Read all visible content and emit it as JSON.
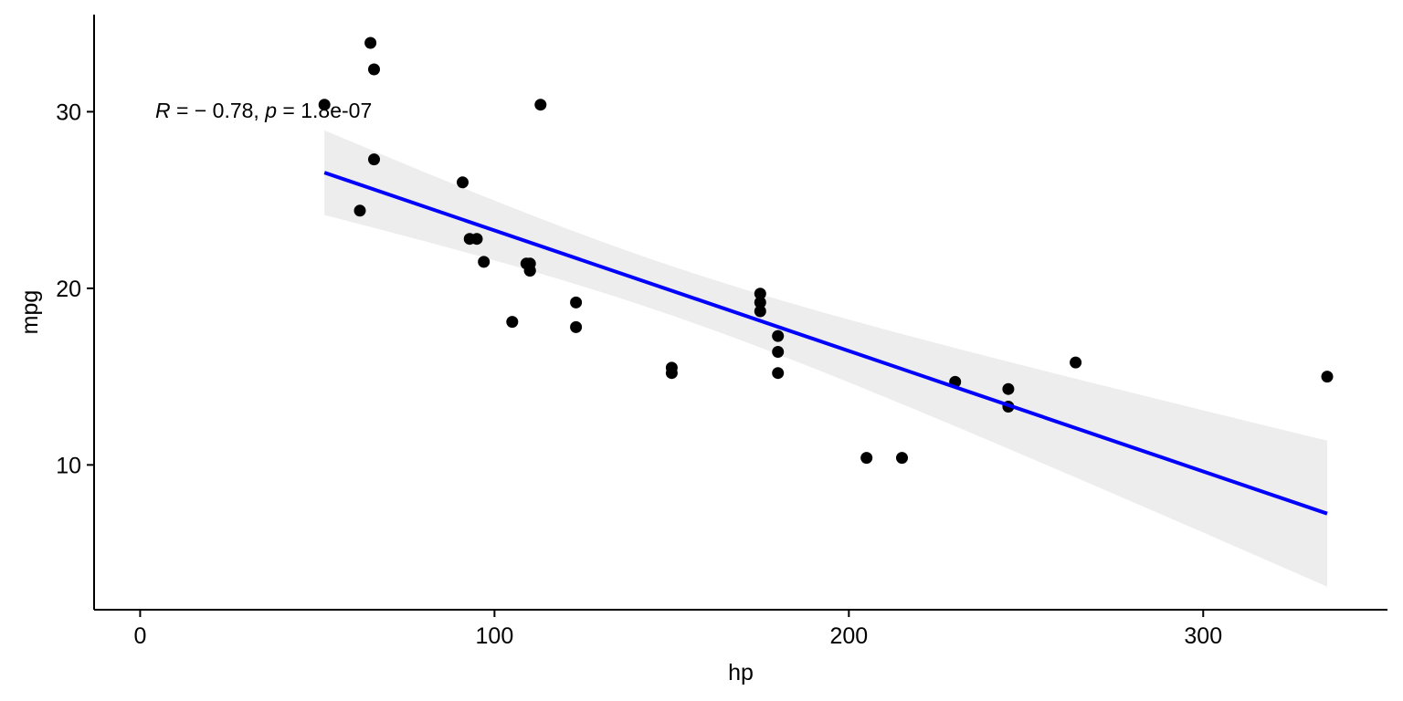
{
  "chart_data": {
    "type": "scatter",
    "title": "",
    "xlabel": "hp",
    "ylabel": "mpg",
    "xlim": [
      -13,
      352
    ],
    "ylim": [
      1.8,
      35.5
    ],
    "x_ticks": [
      0,
      100,
      200,
      300
    ],
    "y_ticks": [
      10,
      20,
      30
    ],
    "grid": false,
    "legend": "none",
    "annotation": {
      "r_symbol": "R",
      "r_text": " = − 0.78, ",
      "p_symbol": "p",
      "p_text": " = 1.8e-07",
      "x": 4,
      "y": 30
    },
    "points": {
      "x": [
        110,
        110,
        93,
        110,
        175,
        105,
        245,
        62,
        95,
        123,
        123,
        180,
        180,
        180,
        205,
        215,
        230,
        66,
        52,
        65,
        97,
        150,
        150,
        245,
        175,
        66,
        91,
        113,
        264,
        175,
        335,
        109
      ],
      "y": [
        21.0,
        21.0,
        22.8,
        21.4,
        18.7,
        18.1,
        14.3,
        24.4,
        22.8,
        19.2,
        17.8,
        16.4,
        17.3,
        15.2,
        10.4,
        10.4,
        14.7,
        32.4,
        30.4,
        33.9,
        21.5,
        15.5,
        15.2,
        13.3,
        19.2,
        27.3,
        26.0,
        30.4,
        15.8,
        19.7,
        15.0,
        21.4
      ],
      "color": "#000000"
    },
    "regression": {
      "x_range": [
        52,
        335
      ],
      "intercept": 30.0989,
      "slope": -0.06823,
      "n": 32,
      "x_mean": 146.6875,
      "sxx": 145726.9,
      "residual_se": 3.863,
      "t_crit": 2.042,
      "line_color": "#0000ff",
      "band_color": "#ebebeb"
    }
  }
}
